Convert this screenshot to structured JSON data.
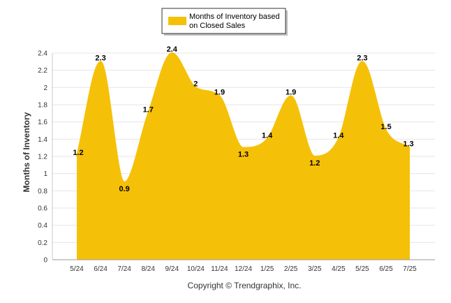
{
  "chart_data": {
    "type": "area",
    "categories": [
      "5/24",
      "6/24",
      "7/24",
      "8/24",
      "9/24",
      "10/24",
      "11/24",
      "12/24",
      "1/25",
      "2/25",
      "3/25",
      "4/25",
      "5/25",
      "6/25",
      "7/25"
    ],
    "series": [
      {
        "name": "Months of Inventory based on Closed Sales",
        "values": [
          1.2,
          2.3,
          0.9,
          1.7,
          2.4,
          2,
          1.9,
          1.3,
          1.4,
          1.9,
          1.2,
          1.4,
          2.3,
          1.5,
          1.3
        ],
        "color": "#F5C108"
      }
    ],
    "ylabel": "Months of Inventory",
    "xlabel": "",
    "ylim": [
      0,
      2.4
    ],
    "yticks": [
      0,
      0.2,
      0.4,
      0.6,
      0.8,
      1,
      1.2,
      1.4,
      1.6,
      1.8,
      2,
      2.2,
      2.4
    ],
    "grid": true,
    "legend_position": "top-center",
    "legend_lines": [
      "Months of Inventory based",
      "on Closed Sales"
    ],
    "copyright": "Copyright © Trendgraphix, Inc."
  }
}
